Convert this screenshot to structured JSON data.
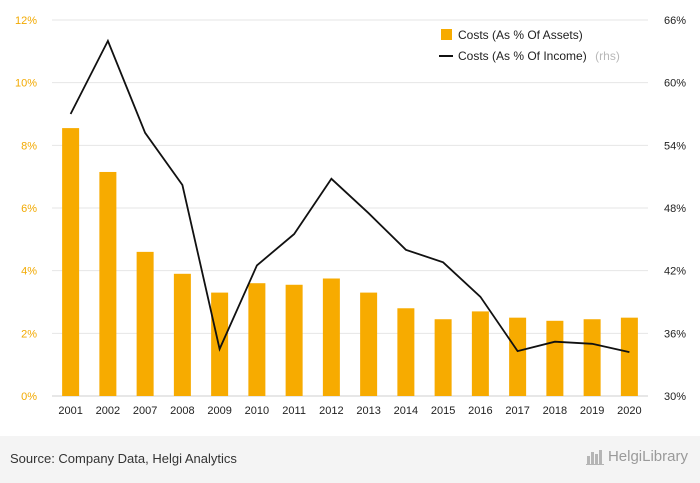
{
  "chart_data": {
    "type": "bar",
    "categories": [
      "2001",
      "2002",
      "2007",
      "2008",
      "2009",
      "2010",
      "2011",
      "2012",
      "2013",
      "2014",
      "2015",
      "2016",
      "2017",
      "2018",
      "2019",
      "2020"
    ],
    "series": [
      {
        "name": "Costs (As % Of Assets)",
        "type": "bar",
        "axis": "left",
        "color": "#f7ab00",
        "values": [
          8.55,
          7.15,
          4.6,
          3.9,
          3.3,
          3.6,
          3.55,
          3.75,
          3.3,
          2.8,
          2.45,
          2.7,
          2.5,
          2.4,
          2.45,
          2.5
        ]
      },
      {
        "name": "Costs (As % Of Income)",
        "name_suffix": "(rhs)",
        "type": "line",
        "axis": "right",
        "color": "#111111",
        "values": [
          57.0,
          64.0,
          55.2,
          50.2,
          34.5,
          42.5,
          45.5,
          50.8,
          47.5,
          44.0,
          42.8,
          39.5,
          34.3,
          35.2,
          35.0,
          34.2
        ]
      }
    ],
    "y_left": {
      "ylim": [
        0,
        12
      ],
      "ticks": [
        "0%",
        "2%",
        "4%",
        "6%",
        "8%",
        "10%",
        "12%"
      ]
    },
    "y_right": {
      "ylim": [
        30,
        66
      ],
      "ticks": [
        "30%",
        "36%",
        "42%",
        "48%",
        "54%",
        "60%",
        "66%"
      ]
    },
    "grid": true,
    "legend_position": "top-right"
  },
  "footer": {
    "source": "Source: Company Data, Helgi Analytics",
    "brand": "HelgiLibrary",
    "brand_icon": "city-skyline-icon"
  }
}
